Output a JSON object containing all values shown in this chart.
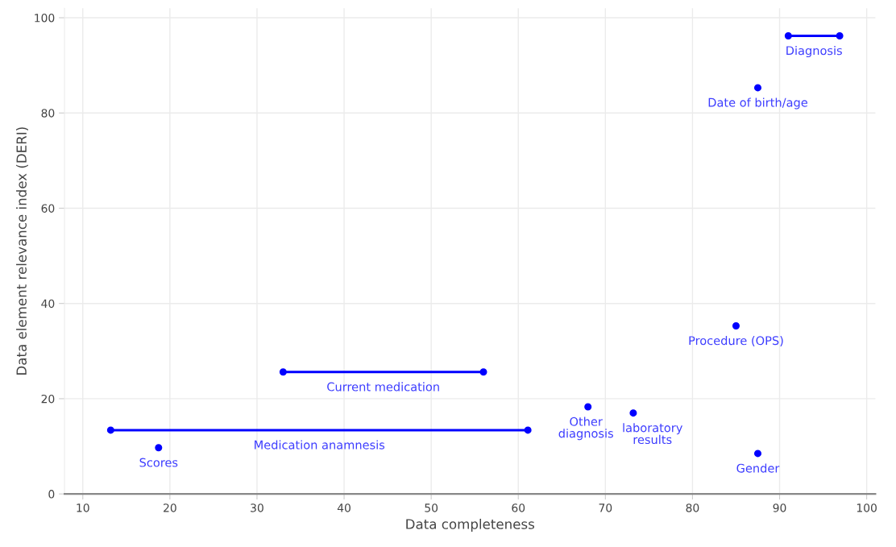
{
  "chart_data": {
    "type": "scatter",
    "xlabel": "Data completeness",
    "ylabel": "Data element relevance index (DERI)",
    "xlim": [
      7.9,
      101
    ],
    "xticks": [
      10,
      20,
      30,
      40,
      50,
      60,
      70,
      80,
      90,
      100
    ],
    "ylim": [
      0,
      102
    ],
    "yticks": [
      0,
      20,
      40,
      60,
      80,
      100
    ],
    "grid": true,
    "legend": false,
    "marker": "circle",
    "series": [
      {
        "name": "Diagnosis",
        "type": "line",
        "color": "#0000ff",
        "x": [
          91,
          96.9
        ],
        "values": [
          96.2,
          96.2
        ]
      },
      {
        "name": "Date of birth/age",
        "type": "scatter",
        "color": "#0000ff",
        "x": [
          87.5
        ],
        "values": [
          85.3
        ]
      },
      {
        "name": "Procedure (OPS)",
        "type": "scatter",
        "color": "#0000ff",
        "x": [
          85.0
        ],
        "values": [
          35.3
        ]
      },
      {
        "name": "Current medication",
        "type": "line",
        "color": "#0000ff",
        "x": [
          33.0,
          56.0
        ],
        "values": [
          25.6,
          25.6
        ]
      },
      {
        "name": "Medication anamnesis",
        "type": "line",
        "color": "#0000ff",
        "x": [
          13.2,
          61.1
        ],
        "values": [
          13.4,
          13.4
        ]
      },
      {
        "name": "Scores",
        "type": "scatter",
        "color": "#0000ff",
        "x": [
          18.7
        ],
        "values": [
          9.7
        ]
      },
      {
        "name": "Other\ndiagnosis",
        "type": "scatter",
        "color": "#0000ff",
        "x": [
          68.0
        ],
        "values": [
          18.3
        ]
      },
      {
        "name": "laboratory\nresults",
        "type": "scatter",
        "color": "#0000ff",
        "x": [
          73.2
        ],
        "values": [
          17.0
        ]
      },
      {
        "name": "Gender",
        "type": "scatter",
        "color": "#0000ff",
        "x": [
          87.5
        ],
        "values": [
          8.5
        ]
      }
    ]
  }
}
